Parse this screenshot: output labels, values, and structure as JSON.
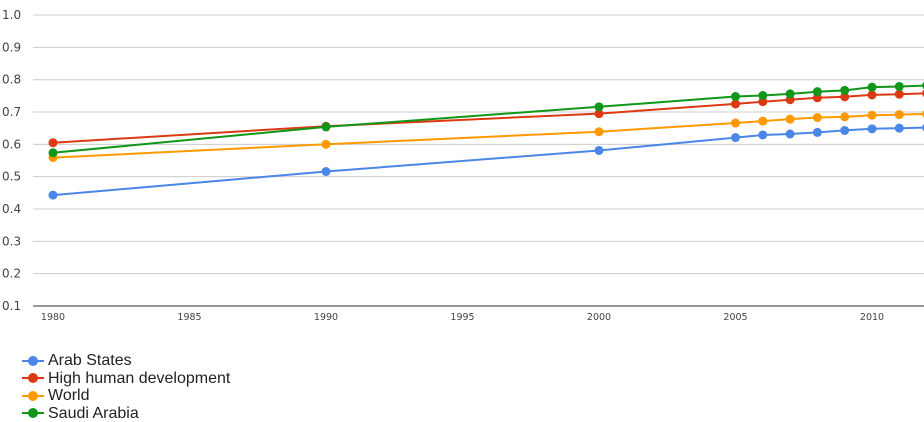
{
  "chart_data": {
    "type": "line",
    "title": "",
    "xlabel": "",
    "ylabel": "",
    "xlim": [
      1980,
      2012
    ],
    "ylim": [
      0.1,
      1.0
    ],
    "grid": true,
    "legend_position": "bottom-left",
    "x": [
      1980,
      1990,
      2000,
      2005,
      2006,
      2007,
      2008,
      2009,
      2010,
      2011,
      2012
    ],
    "y_ticks": [
      "0.1",
      "0.2",
      "0.3",
      "0.4",
      "0.5",
      "0.6",
      "0.7",
      "0.8",
      "0.9",
      "1.0"
    ],
    "x_ticks": [
      "1980",
      "1985",
      "1990",
      "1995",
      "2000",
      "2005",
      "2010"
    ],
    "series": [
      {
        "name": "Arab States",
        "color": "#4a86e8",
        "values": [
          0.443,
          0.516,
          0.581,
          0.621,
          0.629,
          0.632,
          0.637,
          0.643,
          0.648,
          0.65,
          0.652
        ]
      },
      {
        "name": "High human development",
        "color": "#dc3912",
        "values": [
          0.605,
          0.656,
          0.695,
          0.725,
          0.732,
          0.738,
          0.744,
          0.747,
          0.753,
          0.755,
          0.758
        ]
      },
      {
        "name": "World",
        "color": "#ff9900",
        "values": [
          0.559,
          0.6,
          0.639,
          0.666,
          0.672,
          0.678,
          0.683,
          0.685,
          0.69,
          0.692,
          0.694
        ]
      },
      {
        "name": "Saudi Arabia",
        "color": "#109618",
        "values": [
          0.574,
          0.654,
          0.716,
          0.748,
          0.751,
          0.756,
          0.763,
          0.767,
          0.777,
          0.779,
          0.782
        ]
      }
    ]
  }
}
